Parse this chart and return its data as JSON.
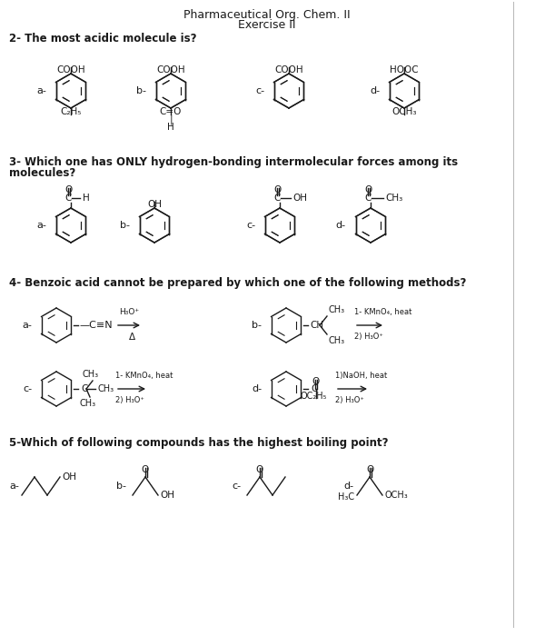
{
  "title_line1": "Pharmaceutical Org. Chem. II",
  "title_line2": "Exercise II",
  "bg_color": "#ffffff",
  "text_color": "#1a1a1a",
  "q2_label": "2- The most acidic molecule is?",
  "q3_line1": "3- Which one has ONLY hydrogen-bonding intermolecular forces among its",
  "q3_line2": "molecules?",
  "q4_label": "4- Benzoic acid cannot be prepared by which one of the following methods?",
  "q5_label": "5-Which of following compounds has the highest boiling point?"
}
